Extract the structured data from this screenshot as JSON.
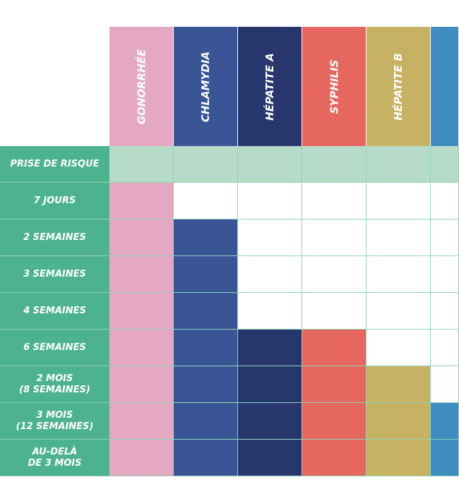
{
  "columns": [
    {
      "label": "GONORRHÉE",
      "color": "#e5a8c3"
    },
    {
      "label": "CHLAMYDIA",
      "color": "#3a5596"
    },
    {
      "label": "HÉPATITE A",
      "color": "#27376e"
    },
    {
      "label": "SYPHILIS",
      "color": "#e5675d"
    },
    {
      "label": "HÉPATITE B",
      "color": "#c7b263"
    },
    {
      "label": "",
      "color": "#3e8cc0"
    }
  ],
  "header_row": {
    "label": "PRISE DE RISQUE",
    "color": "#b6dbc9"
  },
  "rows": [
    {
      "label": "7 JOURS",
      "filled": 1
    },
    {
      "label": "2 SEMAINES",
      "filled": 2
    },
    {
      "label": "3 SEMAINES",
      "filled": 2
    },
    {
      "label": "4 SEMAINES",
      "filled": 2
    },
    {
      "label": "6 SEMAINES",
      "filled": 4
    },
    {
      "label": "2 MOIS\n(8 SEMAINES)",
      "filled": 5
    },
    {
      "label": "3 MOIS\n(12 SEMAINES)",
      "filled": 6
    },
    {
      "label": "AU-DELÀ\nDE 3 MOIS",
      "filled": 6
    }
  ],
  "label_color": "#4db38e"
}
